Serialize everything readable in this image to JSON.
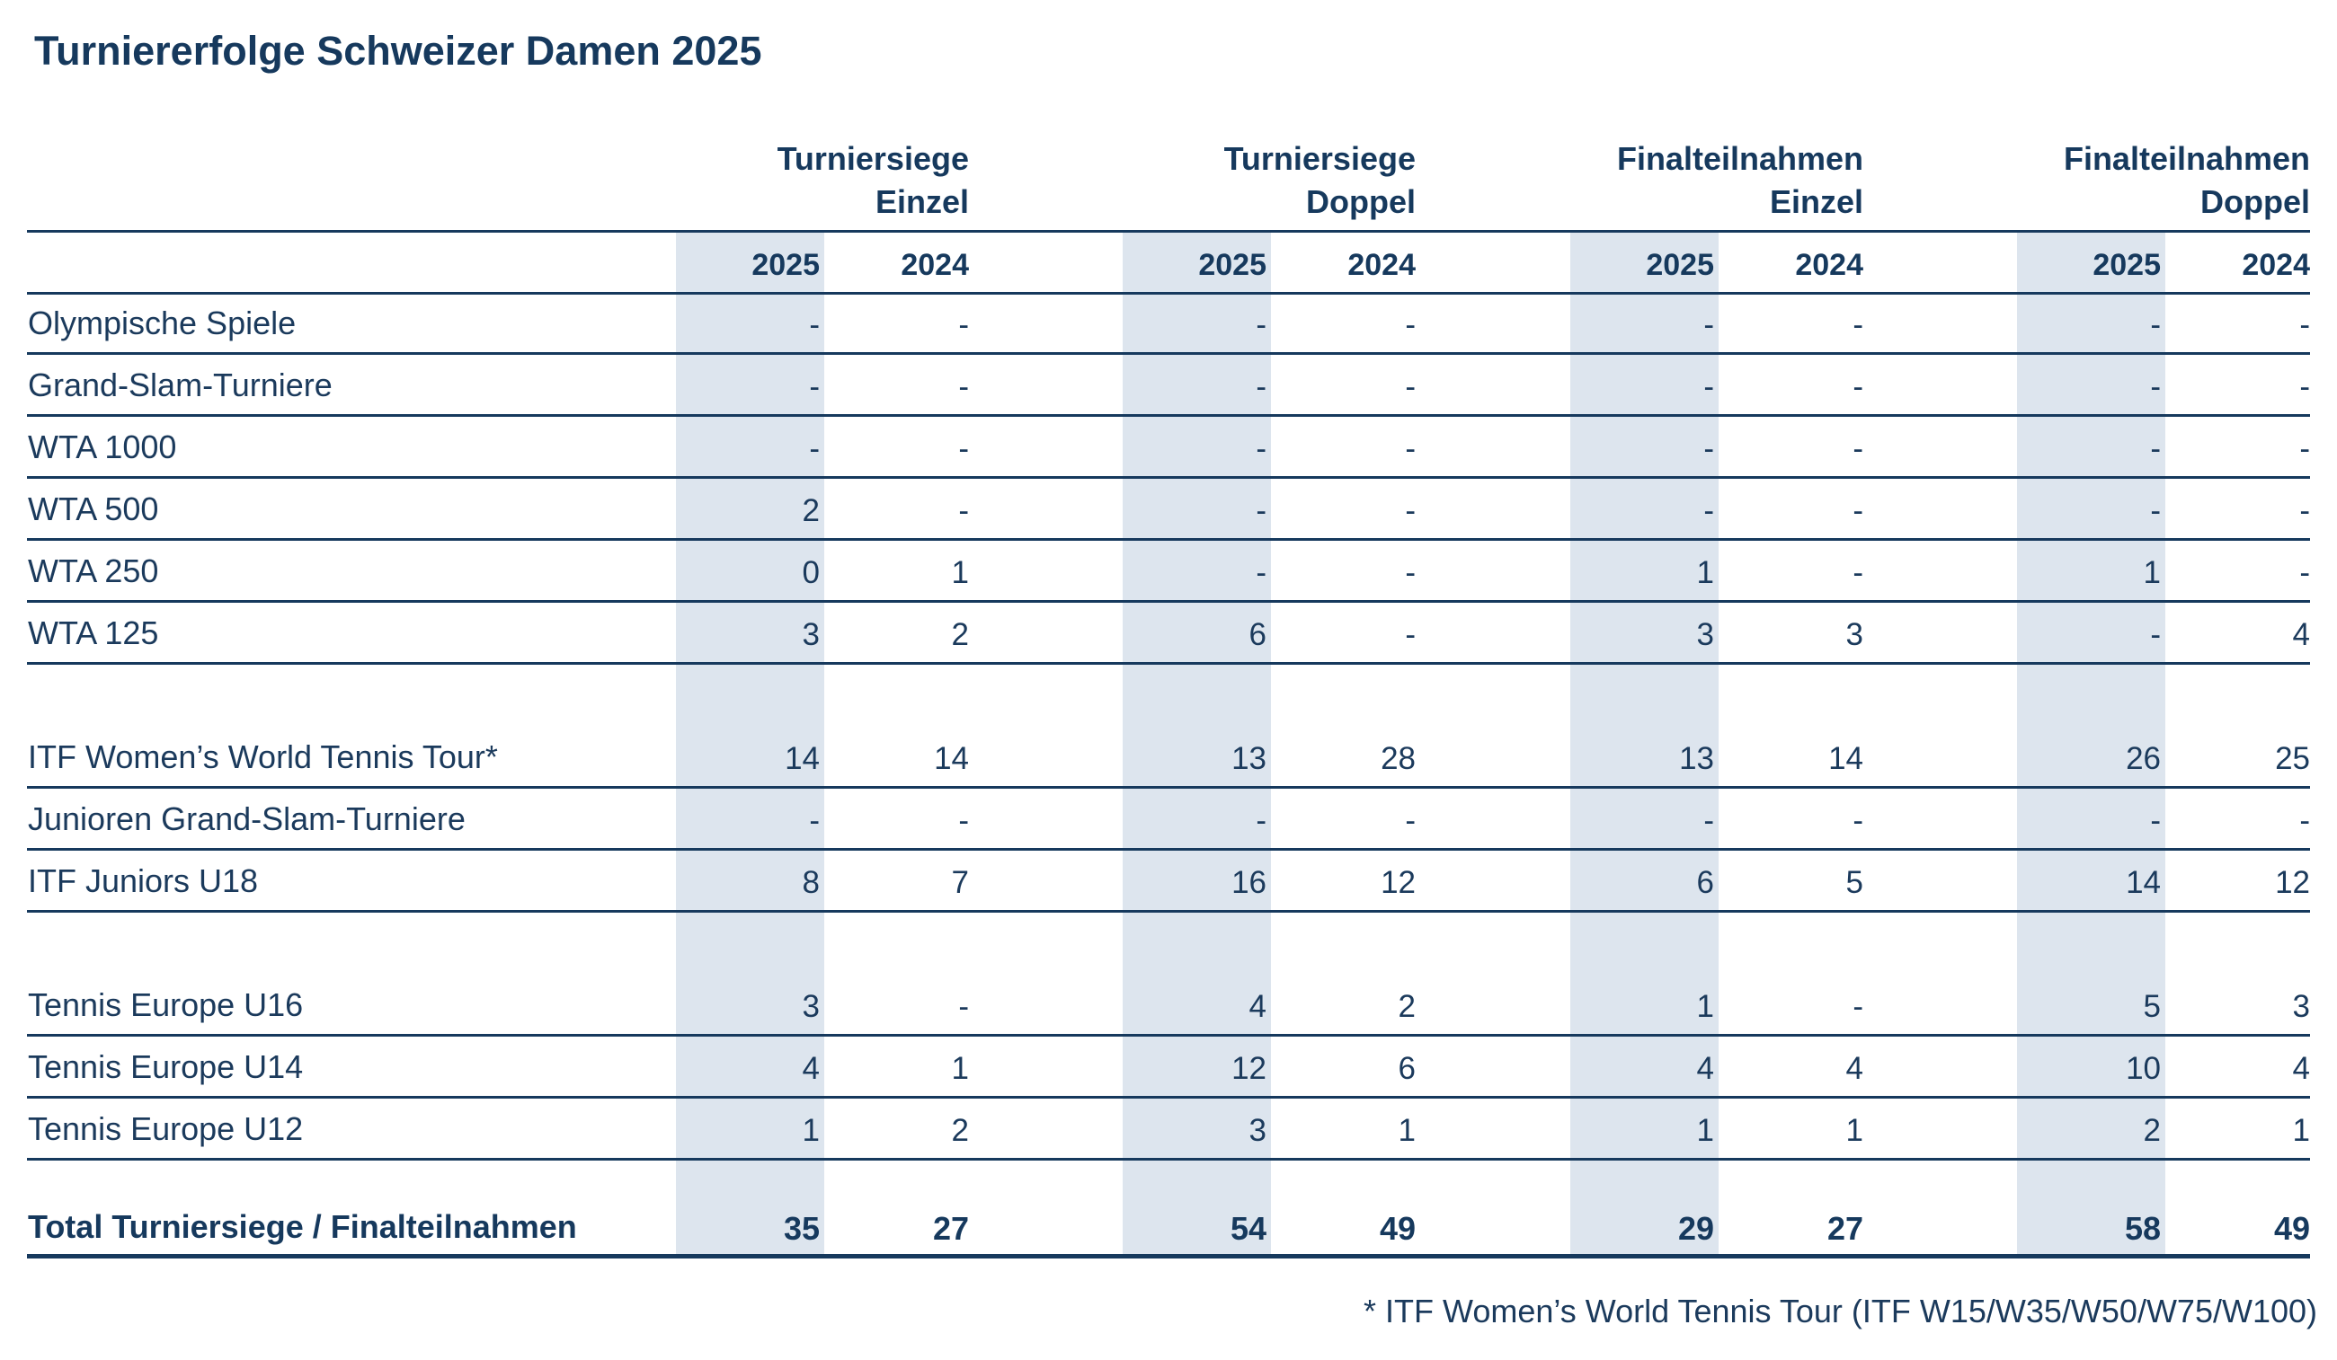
{
  "title": "Turniererfolge Schweizer Damen 2025",
  "groups": [
    {
      "line1": "Turniersiege",
      "line2": "Einzel"
    },
    {
      "line1": "Turniersiege",
      "line2": "Doppel"
    },
    {
      "line1": "Finalteilnahmen",
      "line2": "Einzel"
    },
    {
      "line1": "Finalteilnahmen",
      "line2": "Doppel"
    }
  ],
  "years": [
    "2025",
    "2024",
    "2025",
    "2024",
    "2025",
    "2024",
    "2025",
    "2024"
  ],
  "rows": [
    {
      "label": "Olympische Spiele",
      "values": [
        "-",
        "-",
        "-",
        "-",
        "-",
        "-",
        "-",
        "-"
      ]
    },
    {
      "label": "Grand-Slam-Turniere",
      "values": [
        "-",
        "-",
        "-",
        "-",
        "-",
        "-",
        "-",
        "-"
      ]
    },
    {
      "label": "WTA 1000",
      "values": [
        "-",
        "-",
        "-",
        "-",
        "-",
        "-",
        "-",
        "-"
      ]
    },
    {
      "label": "WTA 500",
      "values": [
        "2",
        "-",
        "-",
        "-",
        "-",
        "-",
        "-",
        "-"
      ]
    },
    {
      "label": "WTA 250",
      "values": [
        "0",
        "1",
        "-",
        "-",
        "1",
        "-",
        "1",
        "-"
      ]
    },
    {
      "label": "WTA 125",
      "values": [
        "3",
        "2",
        "6",
        "-",
        "3",
        "3",
        "-",
        "4"
      ]
    },
    {
      "label": "ITF Women’s World Tennis Tour*",
      "values": [
        "14",
        "14",
        "13",
        "28",
        "13",
        "14",
        "26",
        "25"
      ]
    },
    {
      "label": "Junioren Grand-Slam-Turniere",
      "values": [
        "-",
        "-",
        "-",
        "-",
        "-",
        "-",
        "-",
        "-"
      ]
    },
    {
      "label": "ITF Juniors U18",
      "values": [
        "8",
        "7",
        "16",
        "12",
        "6",
        "5",
        "14",
        "12"
      ]
    },
    {
      "label": "Tennis Europe U16",
      "values": [
        "3",
        "-",
        "4",
        "2",
        "1",
        "-",
        "5",
        "3"
      ]
    },
    {
      "label": "Tennis Europe U14",
      "values": [
        "4",
        "1",
        "12",
        "6",
        "4",
        "4",
        "10",
        "4"
      ]
    },
    {
      "label": "Tennis Europe U12",
      "values": [
        "1",
        "2",
        "3",
        "1",
        "1",
        "1",
        "2",
        "1"
      ]
    }
  ],
  "total": {
    "label": "Total Turniersiege / Finalteilnahmen",
    "values": [
      "35",
      "27",
      "54",
      "49",
      "29",
      "27",
      "58",
      "49"
    ]
  },
  "footnote": "* ITF Women’s World Tennis Tour (ITF W15/W35/W50/W75/W100)",
  "colors": {
    "text": "#16395d",
    "shade": "#dde5ee"
  }
}
